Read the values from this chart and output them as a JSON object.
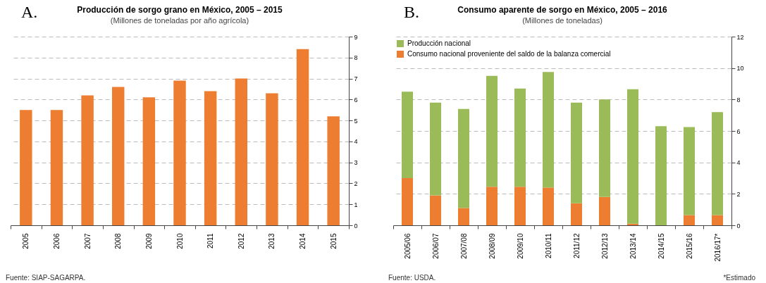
{
  "chart_data": [
    {
      "type": "bar",
      "title": "Producción de sorgo grano en México, 2005 – 2015",
      "subtitle": "(Millones de toneladas por año agrícola)",
      "categories": [
        "2005",
        "2006",
        "2007",
        "2008",
        "2009",
        "2010",
        "2011",
        "2012",
        "2013",
        "2014",
        "2015"
      ],
      "series": [
        {
          "color": "#ed7d31",
          "values": [
            5.5,
            5.5,
            6.2,
            6.6,
            6.1,
            6.9,
            6.4,
            7.0,
            6.3,
            8.4,
            5.2
          ]
        }
      ],
      "ylim": [
        0,
        9
      ],
      "yticks": [
        0,
        1,
        2,
        3,
        4,
        5,
        6,
        7,
        8,
        9
      ],
      "grid": "y",
      "legend": false,
      "annotations": [
        "A.",
        "Fuente: SIAP-SAGARPA."
      ]
    },
    {
      "type": "bar",
      "title": "Consumo aparente de sorgo en México, 2005 – 2016",
      "subtitle": "(Millones de toneladas)",
      "categories": [
        "2005/06",
        "2006/07",
        "2007/08",
        "2008/09",
        "2009/10",
        "2010/11",
        "2011/12",
        "2012/13",
        "2013/14",
        "2014/15",
        "2015/16",
        "2016/17*"
      ],
      "stacked": true,
      "series": [
        {
          "name": "Consumo nacional proveniente del saldo de la balanza comercial",
          "color": "#ed7d31",
          "values": [
            3.0,
            1.9,
            1.1,
            2.45,
            2.45,
            2.4,
            1.4,
            1.8,
            0.1,
            0,
            0.65,
            0.65
          ]
        },
        {
          "name": "Producción nacional",
          "color": "#9bbb59",
          "values": [
            5.5,
            5.9,
            6.3,
            7.05,
            6.25,
            7.35,
            6.4,
            6.2,
            8.55,
            6.3,
            5.6,
            6.55
          ]
        }
      ],
      "ylim": [
        0,
        12
      ],
      "yticks": [
        0,
        2,
        4,
        6,
        8,
        10,
        12
      ],
      "grid": "y",
      "legend": "top left",
      "annotations": [
        "B.",
        "Fuente: USDA.",
        "*Estimado"
      ]
    }
  ]
}
